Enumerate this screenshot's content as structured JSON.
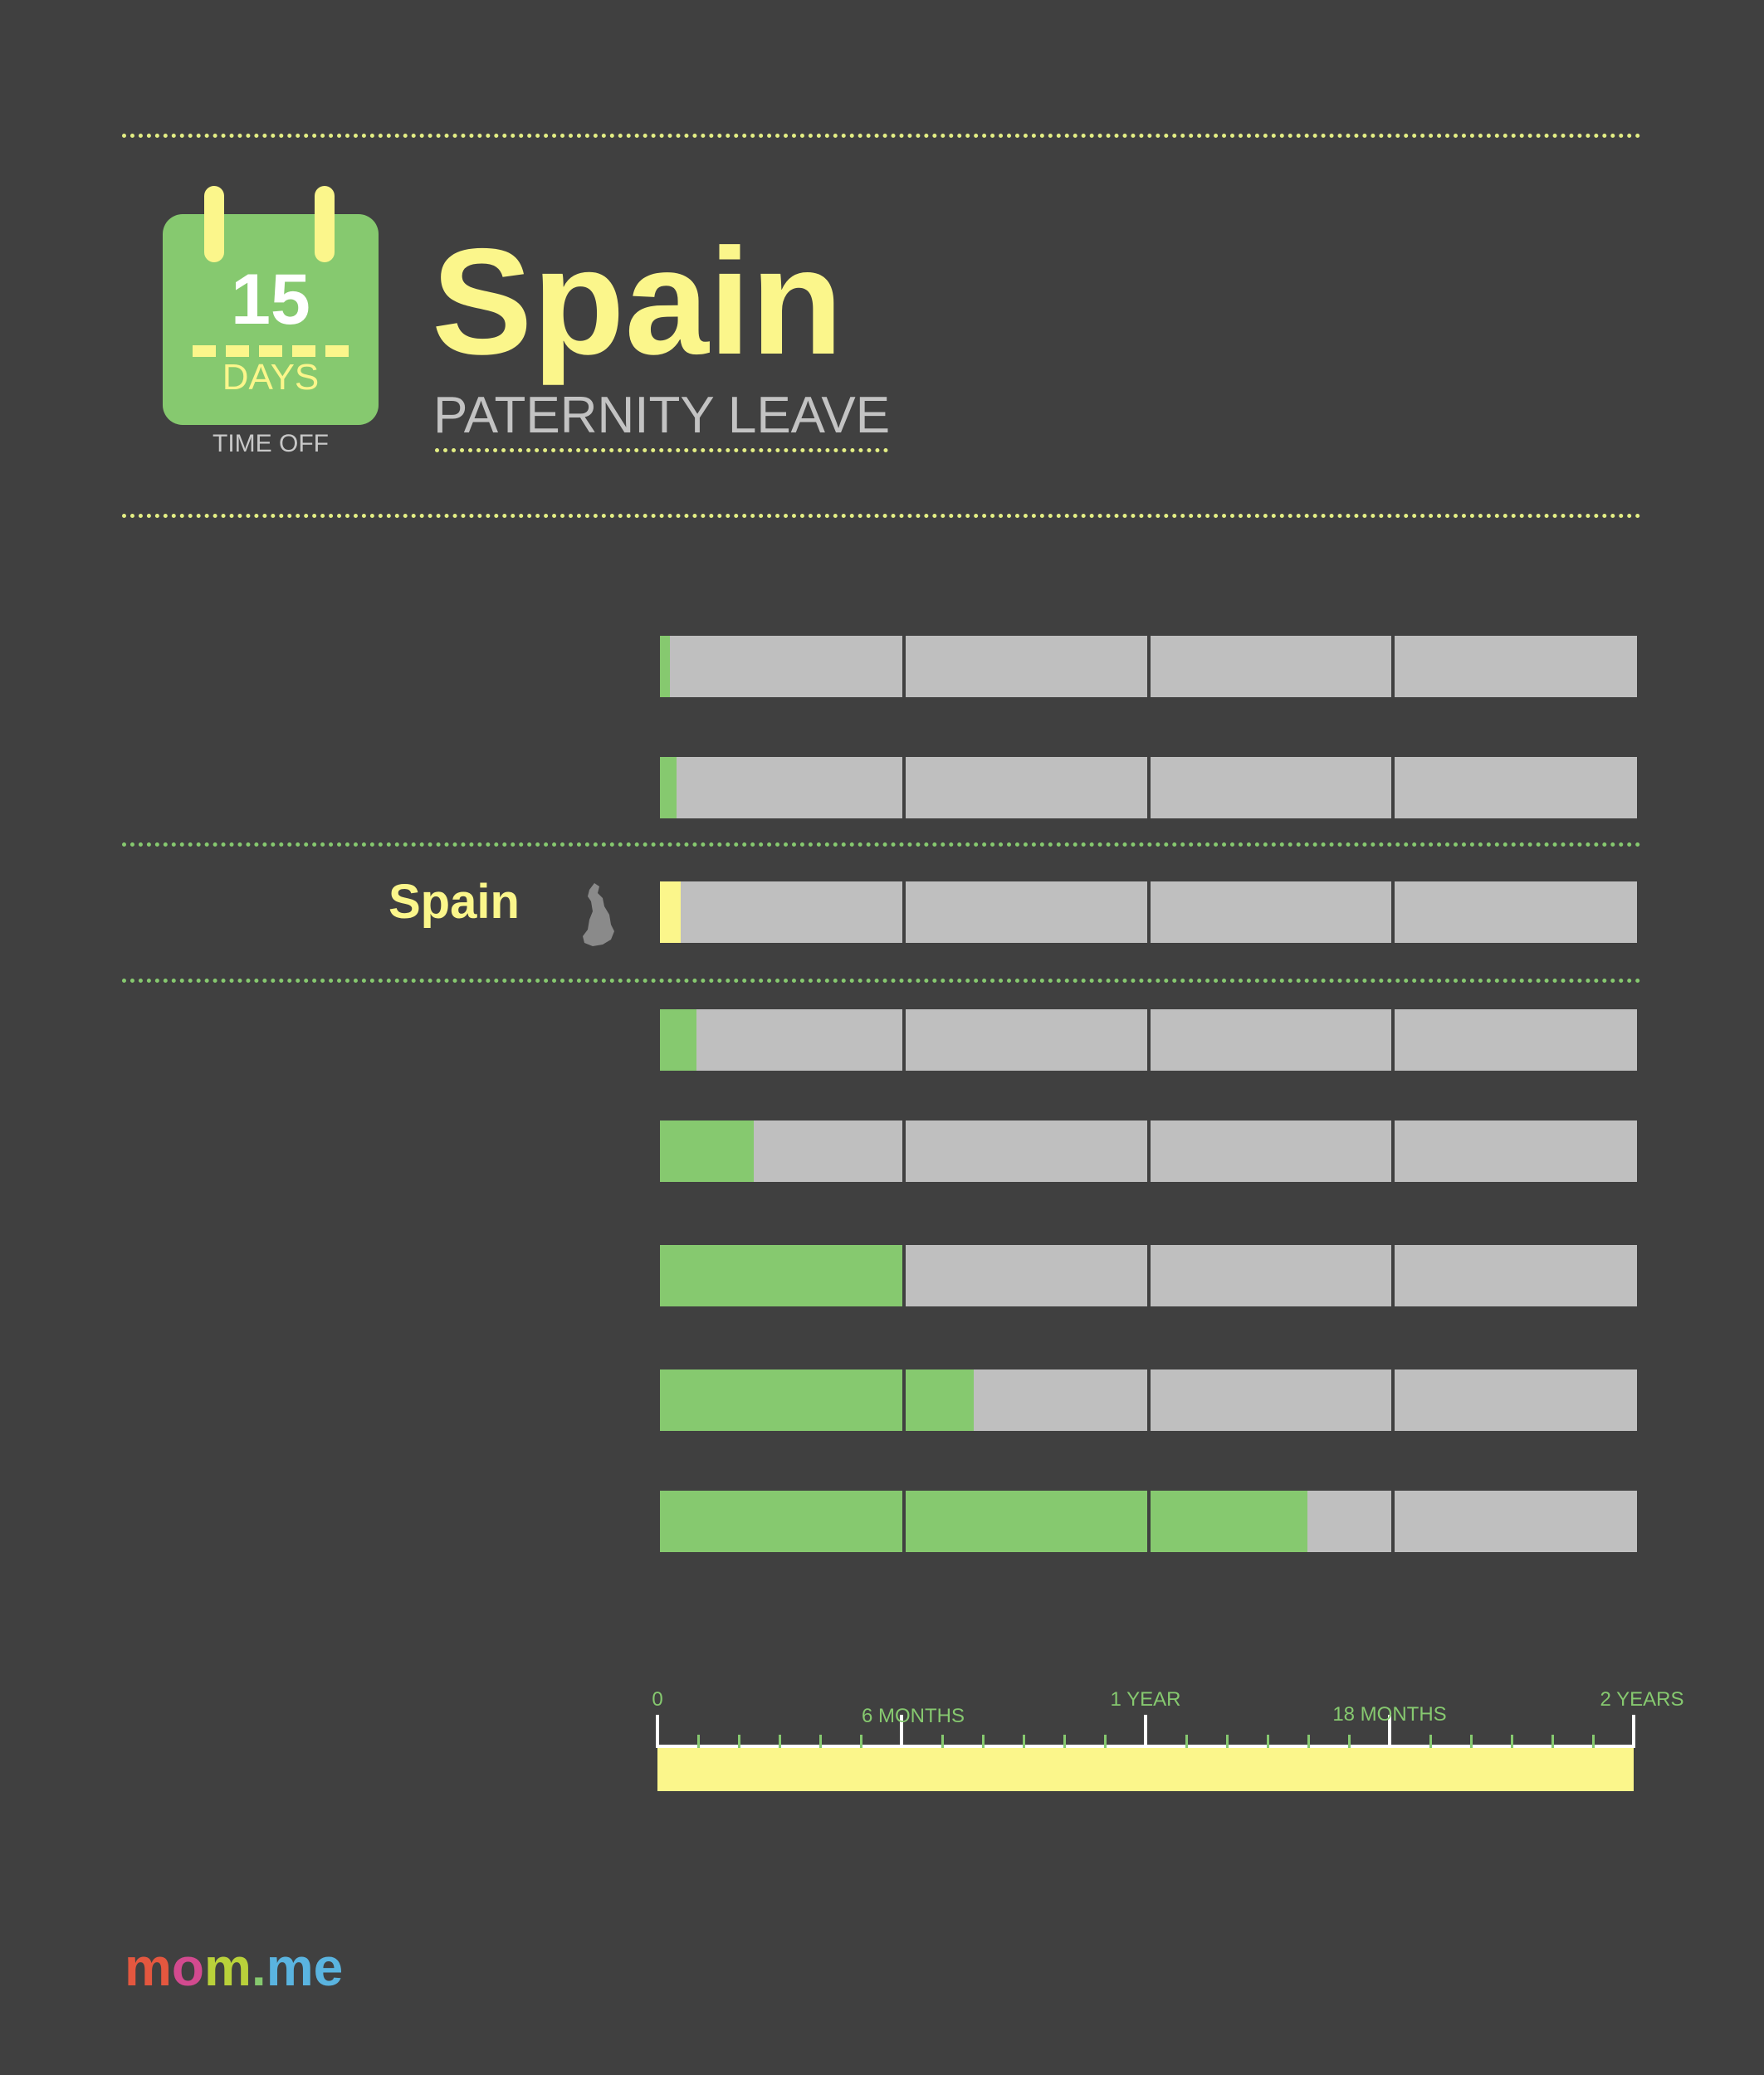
{
  "header": {
    "calendar": {
      "number": "15",
      "unit": "DAYS",
      "caption": "TIME OFF"
    },
    "title": "Spain",
    "subtitle": "PATERNITY LEAVE"
  },
  "colors": {
    "background": "#404040",
    "leave": "#86c96f",
    "highlight": "#fbf68b",
    "track": "#bfbfbf"
  },
  "chart_data": {
    "type": "bar",
    "orientation": "horizontal",
    "unit": "months",
    "xlim": [
      0,
      24
    ],
    "highlight_label": "Spain",
    "bars": [
      {
        "months": 0.25
      },
      {
        "months": 0.4
      },
      {
        "months": 0.5,
        "highlight": true
      },
      {
        "months": 0.9
      },
      {
        "months": 2.3
      },
      {
        "months": 6.0
      },
      {
        "months": 7.7
      },
      {
        "months": 15.9
      }
    ],
    "axis": {
      "ticks": [
        {
          "value": 0,
          "label": "0"
        },
        {
          "value": 6,
          "label": "6 MONTHS"
        },
        {
          "value": 12,
          "label": "1 YEAR"
        },
        {
          "value": 18,
          "label": "18 MONTHS"
        },
        {
          "value": 24,
          "label": "2 YEARS"
        }
      ],
      "minor_step": 1
    }
  },
  "brand": {
    "logo_parts": [
      {
        "text": "m",
        "color": "#e4573f"
      },
      {
        "text": "o",
        "color": "#d24a8f"
      },
      {
        "text": "m",
        "color": "#b9d13a"
      },
      {
        "text": ".",
        "color": "#86c96f"
      },
      {
        "text": "me",
        "color": "#5ab4e0"
      }
    ]
  }
}
